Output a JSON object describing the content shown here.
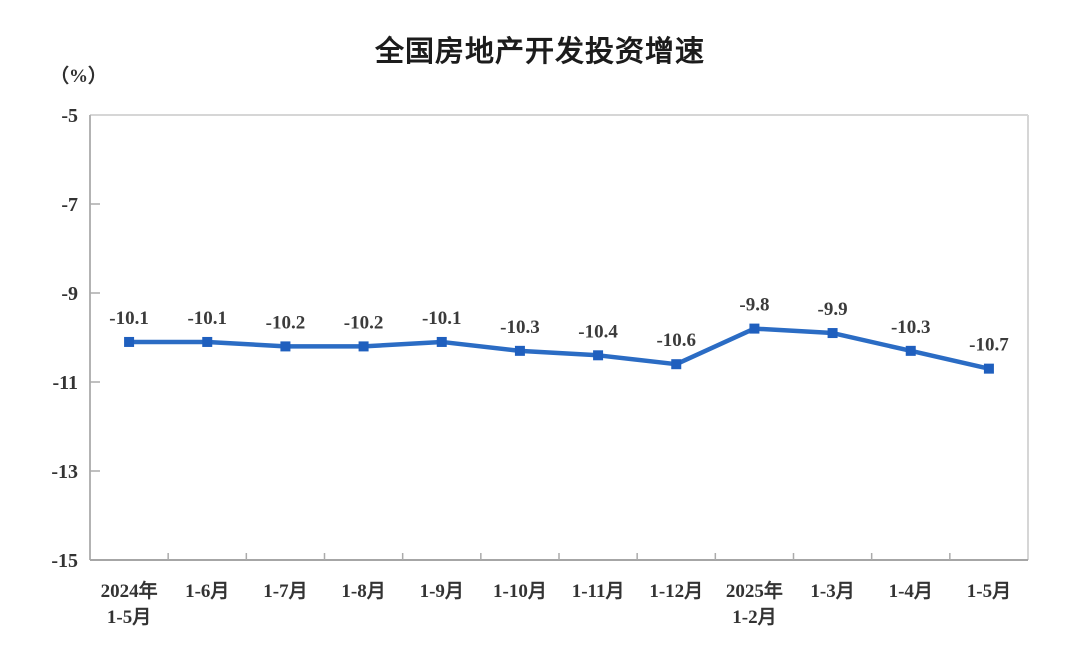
{
  "title": "全国房地产开发投资增速",
  "unit_label": "（%）",
  "chart_data": {
    "type": "line",
    "title": "全国房地产开发投资增速",
    "ylabel": "（%）",
    "categories": [
      "2024年\n1-5月",
      "1-6月",
      "1-7月",
      "1-8月",
      "1-9月",
      "1-10月",
      "1-11月",
      "1-12月",
      "2025年\n1-2月",
      "1-3月",
      "1-4月",
      "1-5月"
    ],
    "values": [
      -10.1,
      -10.1,
      -10.2,
      -10.2,
      -10.1,
      -10.3,
      -10.4,
      -10.6,
      -9.8,
      -9.9,
      -10.3,
      -10.7
    ],
    "data_labels": [
      "-10.1",
      "-10.1",
      "-10.2",
      "-10.2",
      "-10.1",
      "-10.3",
      "-10.4",
      "-10.6",
      "-9.8",
      "-9.9",
      "-10.3",
      "-10.7"
    ],
    "ylim": [
      -15,
      -5
    ],
    "yticks": [
      "-5",
      "-7",
      "-9",
      "-11",
      "-13",
      "-15"
    ],
    "ytick_values": [
      -5,
      -7,
      -9,
      -11,
      -13,
      -15
    ],
    "grid": false,
    "legend_position": "none",
    "series_name": "全国房地产开发投资增速"
  },
  "colors": {
    "line": "#2b6cc4",
    "marker": "#1f5fbe",
    "axis_left": "#b3b3b3",
    "axis_bottom": "#a6a6a6",
    "border_top": "#d6d6d6",
    "border_right": "#d6d6d6",
    "tick": "#ababab",
    "tick_label": "#333333",
    "data_label": "#3b3b3b",
    "title_text": "#1c1c1c"
  }
}
